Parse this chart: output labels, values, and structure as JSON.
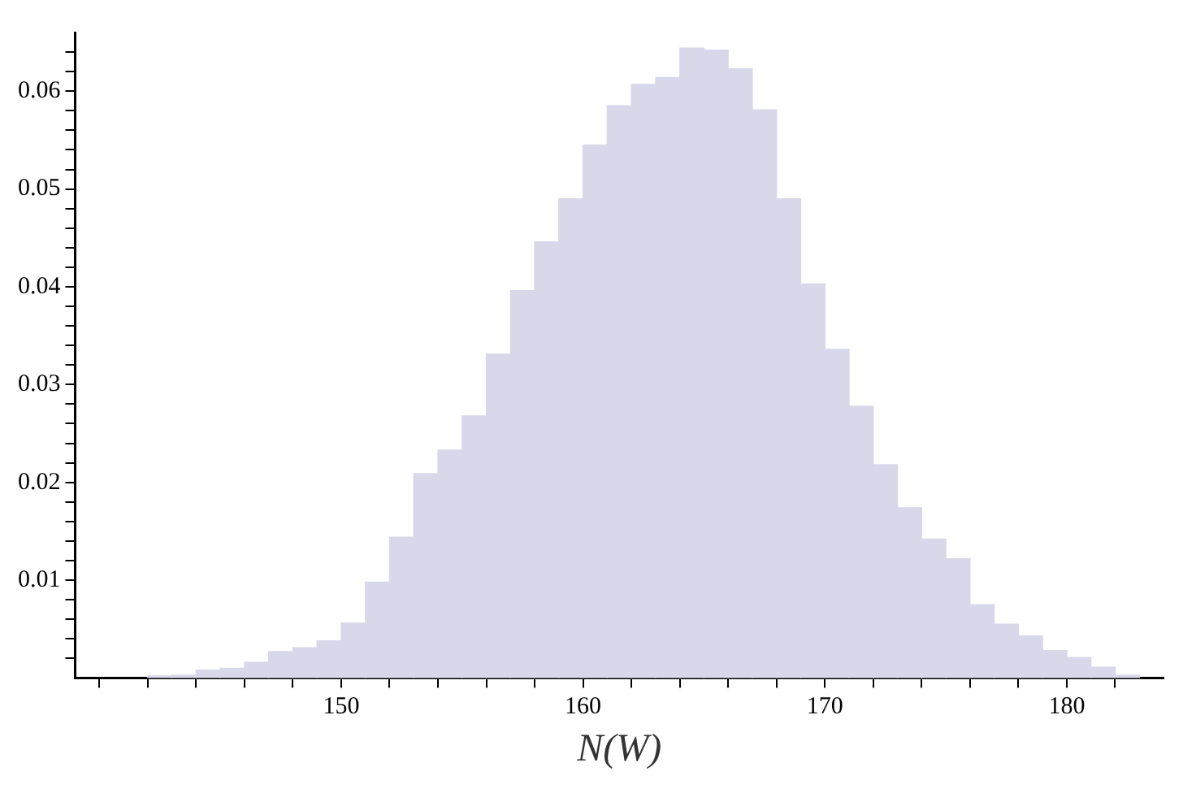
{
  "chart_data": {
    "type": "histogram",
    "xlabel": "N(W)",
    "bins": [
      139,
      140,
      141,
      142,
      143,
      144,
      145,
      146,
      147,
      148,
      149,
      150,
      151,
      152,
      153,
      154,
      155,
      156,
      157,
      158,
      159,
      160,
      161,
      162,
      163,
      164,
      165,
      166,
      167,
      168,
      169,
      170,
      171,
      172,
      173,
      174,
      175,
      176,
      177,
      178,
      179,
      180,
      181,
      182,
      183
    ],
    "values": [
      null,
      null,
      null,
      0.0002,
      0.0003,
      0.0008,
      0.001,
      0.0016,
      0.0027,
      0.0031,
      0.0038,
      0.0056,
      0.0098,
      0.0144,
      0.0209,
      0.0233,
      0.0268,
      0.0331,
      0.0396,
      0.0446,
      0.049,
      0.0545,
      0.0585,
      0.0607,
      0.0614,
      0.0644,
      0.0642,
      0.0623,
      0.0581,
      0.049,
      0.0403,
      0.0336,
      0.0278,
      0.0218,
      0.0174,
      0.0142,
      0.0122,
      0.0075,
      0.0055,
      0.0043,
      0.0028,
      0.0021,
      0.0011,
      0.0003
    ],
    "color": "#d8d8ea",
    "xlim": [
      139,
      184
    ],
    "xticks": [
      {
        "value": 140,
        "label": null
      },
      {
        "value": 142,
        "label": null
      },
      {
        "value": 144,
        "label": null
      },
      {
        "value": 146,
        "label": null
      },
      {
        "value": 148,
        "label": null
      },
      150,
      {
        "value": 152,
        "label": null
      },
      {
        "value": 154,
        "label": null
      },
      {
        "value": 156,
        "label": null
      },
      {
        "value": 158,
        "label": null
      },
      160,
      {
        "value": 162,
        "label": null
      },
      {
        "value": 164,
        "label": null
      },
      {
        "value": 166,
        "label": null
      },
      {
        "value": 168,
        "label": null
      },
      170,
      {
        "value": 172,
        "label": null
      },
      {
        "value": 174,
        "label": null
      },
      {
        "value": 176,
        "label": null
      },
      {
        "value": 178,
        "label": null
      },
      180,
      {
        "value": 182,
        "label": null
      }
    ],
    "ylim": [
      0,
      0.066
    ],
    "yticks": [
      {
        "value": 0.002,
        "label": null
      },
      {
        "value": 0.004,
        "label": null
      },
      {
        "value": 0.006,
        "label": null
      },
      {
        "value": 0.008,
        "label": null
      },
      0.01,
      {
        "value": 0.012,
        "label": null
      },
      {
        "value": 0.014,
        "label": null
      },
      {
        "value": 0.016,
        "label": null
      },
      {
        "value": 0.018,
        "label": null
      },
      0.02,
      {
        "value": 0.022,
        "label": null
      },
      {
        "value": 0.024,
        "label": null
      },
      {
        "value": 0.026,
        "label": null
      },
      {
        "value": 0.028,
        "label": null
      },
      0.03,
      {
        "value": 0.032,
        "label": null
      },
      {
        "value": 0.034,
        "label": null
      },
      {
        "value": 0.036,
        "label": null
      },
      {
        "value": 0.038,
        "label": null
      },
      0.04,
      {
        "value": 0.042,
        "label": null
      },
      {
        "value": 0.044,
        "label": null
      },
      {
        "value": 0.046,
        "label": null
      },
      {
        "value": 0.048,
        "label": null
      },
      0.05,
      {
        "value": 0.052,
        "label": null
      },
      {
        "value": 0.054,
        "label": null
      },
      {
        "value": 0.056,
        "label": null
      },
      {
        "value": 0.058,
        "label": null
      },
      0.06,
      {
        "value": 0.062,
        "label": null
      },
      {
        "value": 0.064,
        "label": null
      }
    ],
    "grid": false,
    "legend": false
  }
}
